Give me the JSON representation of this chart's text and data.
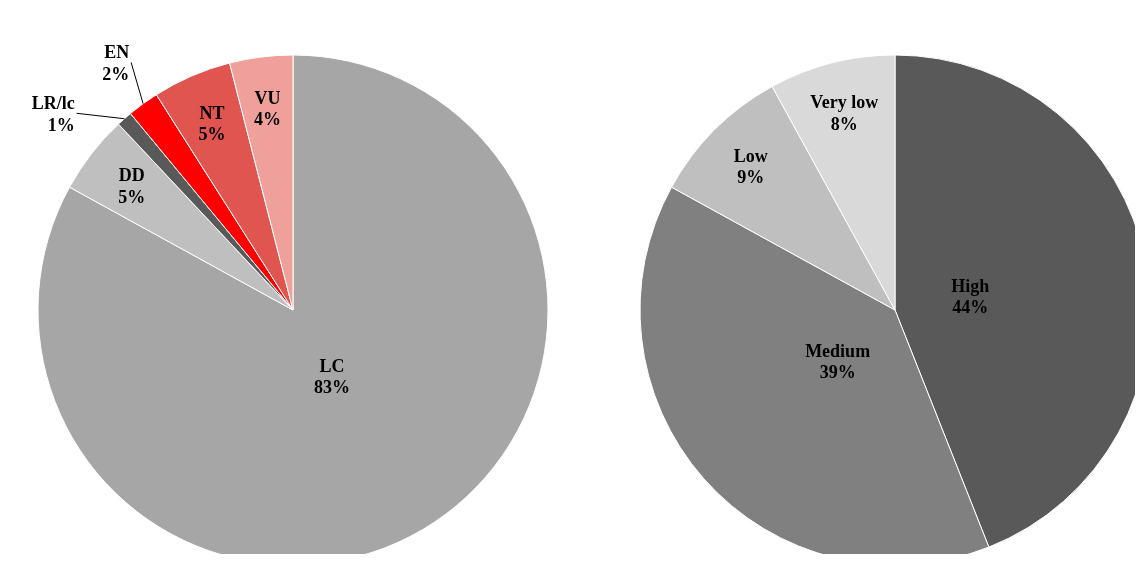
{
  "chart_data": [
    {
      "type": "pie",
      "categories": [
        "LC",
        "DD",
        "LR/lc",
        "EN",
        "NT",
        "VU"
      ],
      "values": [
        83,
        5,
        1,
        2,
        5,
        4
      ],
      "value_labels": [
        "83%",
        "5%",
        "1%",
        "2%",
        "5%",
        "4%"
      ],
      "colors": [
        "#a6a6a6",
        "#bfbfbf",
        "#595959",
        "#ff0000",
        "#e05550",
        "#f0a09a"
      ]
    },
    {
      "type": "pie",
      "categories": [
        "High",
        "Medium",
        "Low",
        "Very low"
      ],
      "values": [
        44,
        39,
        9,
        8
      ],
      "value_labels": [
        "44%",
        "39%",
        "9%",
        "8%"
      ],
      "colors": [
        "#595959",
        "#808080",
        "#bfbfbf",
        "#d9d9d9"
      ]
    }
  ]
}
